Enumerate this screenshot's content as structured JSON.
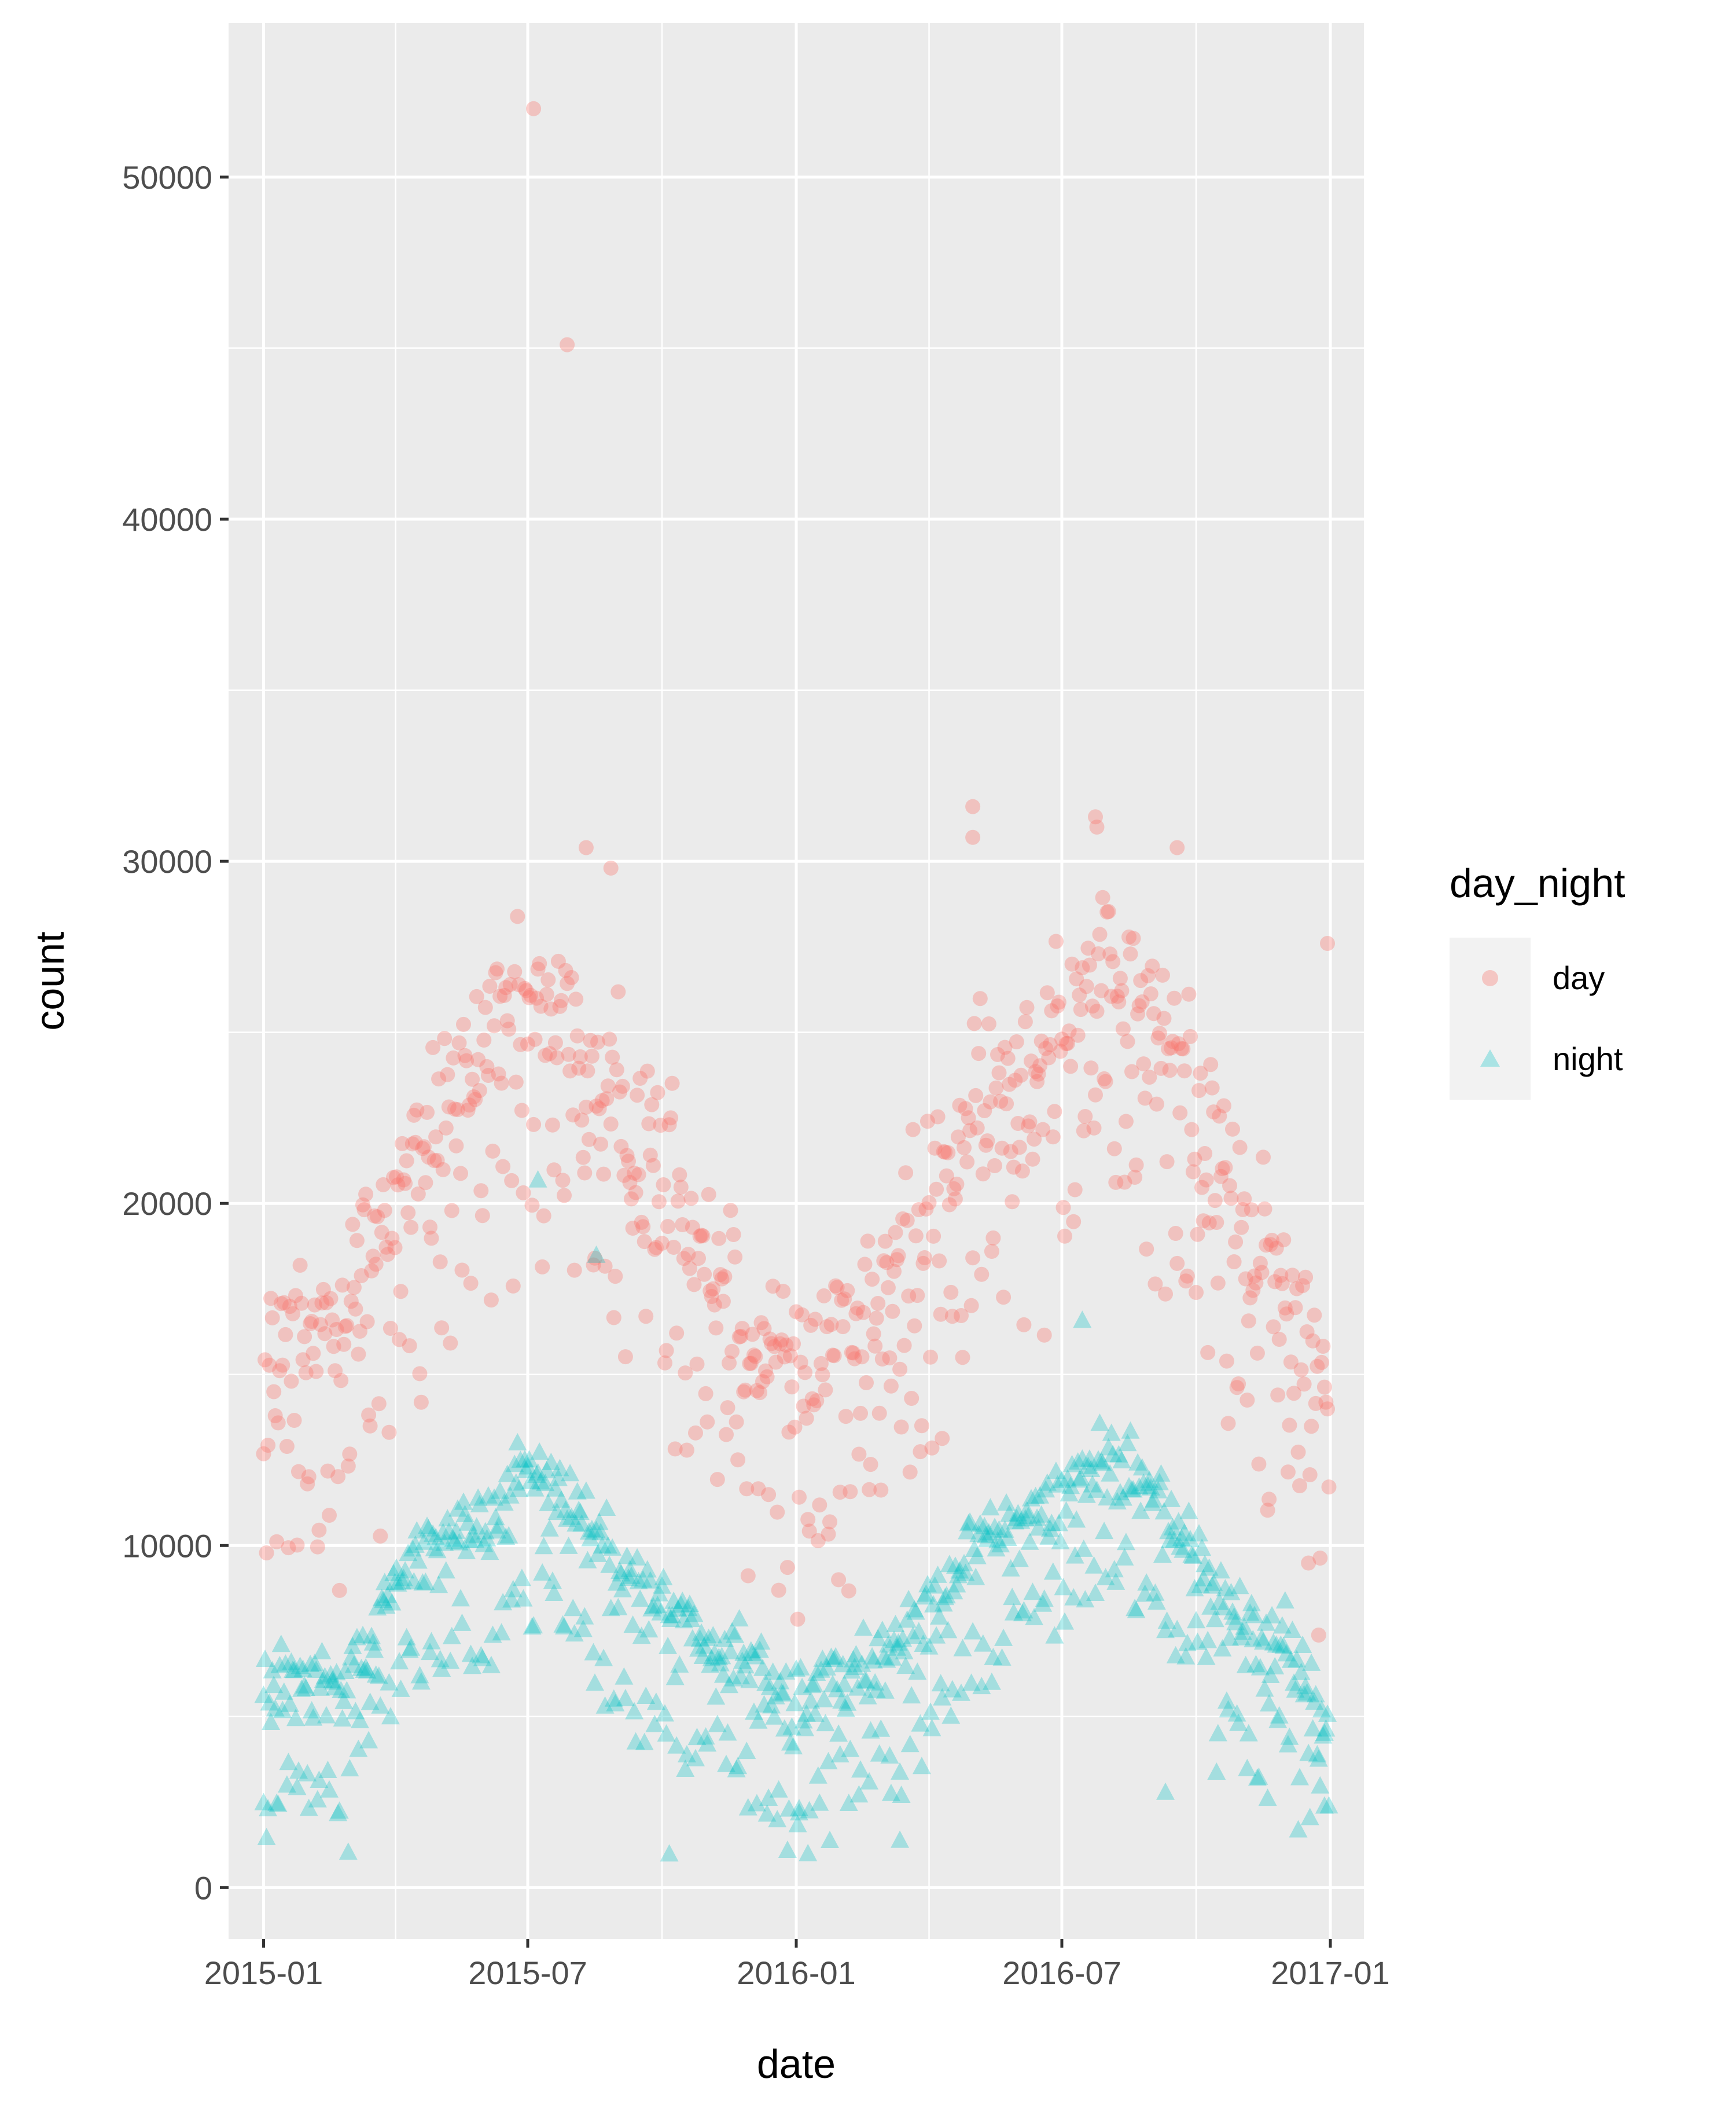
{
  "chart_data": {
    "type": "scatter",
    "title": "",
    "xlabel": "date",
    "ylabel": "count",
    "xlim": [
      "2014-12-08",
      "2017-01-24"
    ],
    "ylim": [
      -1500,
      54500
    ],
    "x_ticks": [
      "2015-01",
      "2015-07",
      "2016-01",
      "2016-07",
      "2017-01"
    ],
    "y_ticks": [
      "0",
      "10000",
      "20000",
      "30000",
      "40000",
      "50000"
    ],
    "y_minor_ticks": [
      5000,
      15000,
      25000,
      35000,
      45000
    ],
    "grid": true,
    "panel_background": "#ebebeb",
    "legend": {
      "title": "day_night",
      "position": "right",
      "entries": [
        {
          "label": "day",
          "shape": "circle",
          "color": "#F8766D"
        },
        {
          "label": "night",
          "shape": "triangle",
          "color": "#00BFC4"
        }
      ]
    },
    "series": [
      {
        "name": "day",
        "shape": "circle",
        "color": "#F8766D",
        "opacity": 0.35,
        "trend": {
          "dates": [
            "2015-01-01",
            "2015-02-01",
            "2015-03-01",
            "2015-04-01",
            "2015-05-01",
            "2015-06-01",
            "2015-07-01",
            "2015-08-01",
            "2015-09-01",
            "2015-10-01",
            "2015-11-01",
            "2015-12-01",
            "2016-01-01",
            "2016-02-01",
            "2016-03-01",
            "2016-04-01",
            "2016-05-01",
            "2016-06-01",
            "2016-07-01",
            "2016-08-01",
            "2016-09-01",
            "2016-10-01",
            "2016-11-01",
            "2016-12-01",
            "2016-12-31"
          ],
          "values": [
            15000,
            16000,
            17500,
            20000,
            22500,
            24500,
            25500,
            25000,
            22500,
            21000,
            19000,
            16000,
            15000,
            16000,
            17500,
            19500,
            22500,
            24000,
            26000,
            26500,
            25500,
            23000,
            19500,
            17500,
            14000
          ]
        },
        "spread": 2800,
        "notable_points": [
          {
            "x": "2015-07-05",
            "y": 52000
          },
          {
            "x": "2015-07-28",
            "y": 45100
          },
          {
            "x": "2015-08-10",
            "y": 30400
          },
          {
            "x": "2015-08-27",
            "y": 29800
          },
          {
            "x": "2016-05-01",
            "y": 31600
          },
          {
            "x": "2016-05-01",
            "y": 30700
          },
          {
            "x": "2016-07-24",
            "y": 31300
          },
          {
            "x": "2016-07-25",
            "y": 31000
          },
          {
            "x": "2016-09-18",
            "y": 30400
          },
          {
            "x": "2016-12-30",
            "y": 27600
          }
        ]
      },
      {
        "name": "night",
        "shape": "triangle",
        "color": "#00BFC4",
        "opacity": 0.3,
        "trend": {
          "dates": [
            "2015-01-01",
            "2015-02-01",
            "2015-03-01",
            "2015-04-01",
            "2015-05-01",
            "2015-06-01",
            "2015-07-01",
            "2015-08-01",
            "2015-09-01",
            "2015-10-01",
            "2015-11-01",
            "2015-12-01",
            "2016-01-01",
            "2016-02-01",
            "2016-03-01",
            "2016-04-01",
            "2016-05-01",
            "2016-06-01",
            "2016-07-01",
            "2016-08-01",
            "2016-09-01",
            "2016-10-01",
            "2016-11-01",
            "2016-12-01",
            "2016-12-31"
          ],
          "values": [
            5800,
            6000,
            6200,
            8800,
            9800,
            10500,
            12200,
            11000,
            9000,
            8200,
            7200,
            6500,
            5200,
            6200,
            6600,
            8000,
            9800,
            10500,
            11500,
            12500,
            11800,
            9500,
            7500,
            7000,
            4500
          ]
        },
        "spread": 1400,
        "notable_points": [
          {
            "x": "2015-01-01",
            "y": 2500
          },
          {
            "x": "2015-07-08",
            "y": 20700
          },
          {
            "x": "2015-08-17",
            "y": 18500
          },
          {
            "x": "2015-10-06",
            "y": 1000
          },
          {
            "x": "2016-01-03",
            "y": 2200
          },
          {
            "x": "2016-03-12",
            "y": 1400
          },
          {
            "x": "2016-07-15",
            "y": 16600
          },
          {
            "x": "2016-09-10",
            "y": 2800
          },
          {
            "x": "2016-12-28",
            "y": 2400
          }
        ]
      }
    ]
  }
}
